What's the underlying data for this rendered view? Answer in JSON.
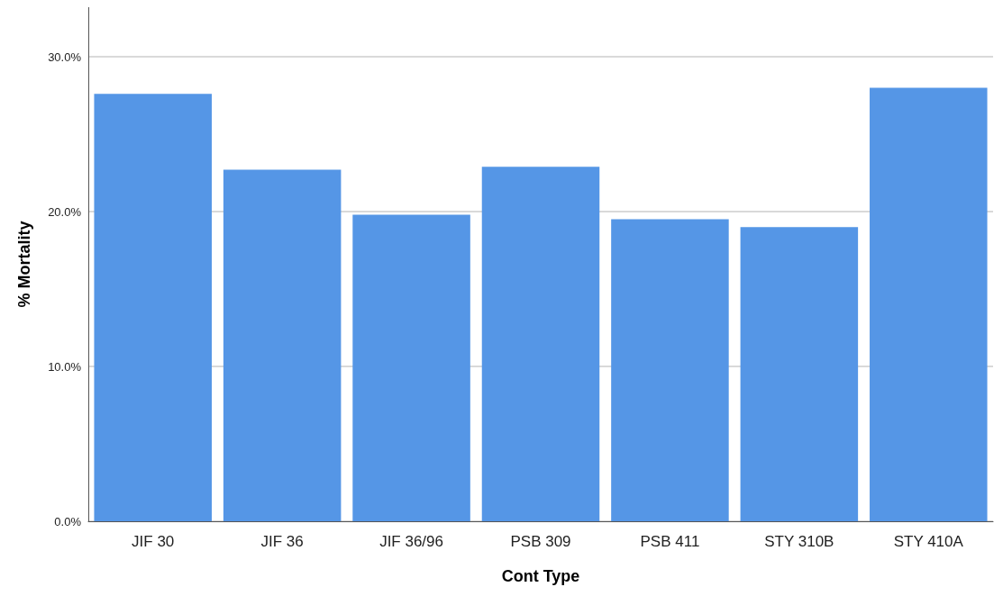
{
  "chart_data": {
    "type": "bar",
    "xlabel": "Cont Type",
    "ylabel": "% Mortality",
    "categories": [
      "JIF 30",
      "JIF 36",
      "JIF 36/96",
      "PSB 309",
      "PSB 411",
      "STY 310B",
      "STY 410A"
    ],
    "values": [
      27.6,
      22.7,
      19.8,
      22.9,
      19.5,
      19.0,
      28.0
    ],
    "color": "#5596e6",
    "ylim": [
      0,
      33.2
    ],
    "yticks": [
      {
        "value": 0,
        "label": "0.0%"
      },
      {
        "value": 10,
        "label": "10.0%"
      },
      {
        "value": 20,
        "label": "20.0%"
      },
      {
        "value": 30,
        "label": "30.0%"
      }
    ],
    "grid": "y"
  }
}
